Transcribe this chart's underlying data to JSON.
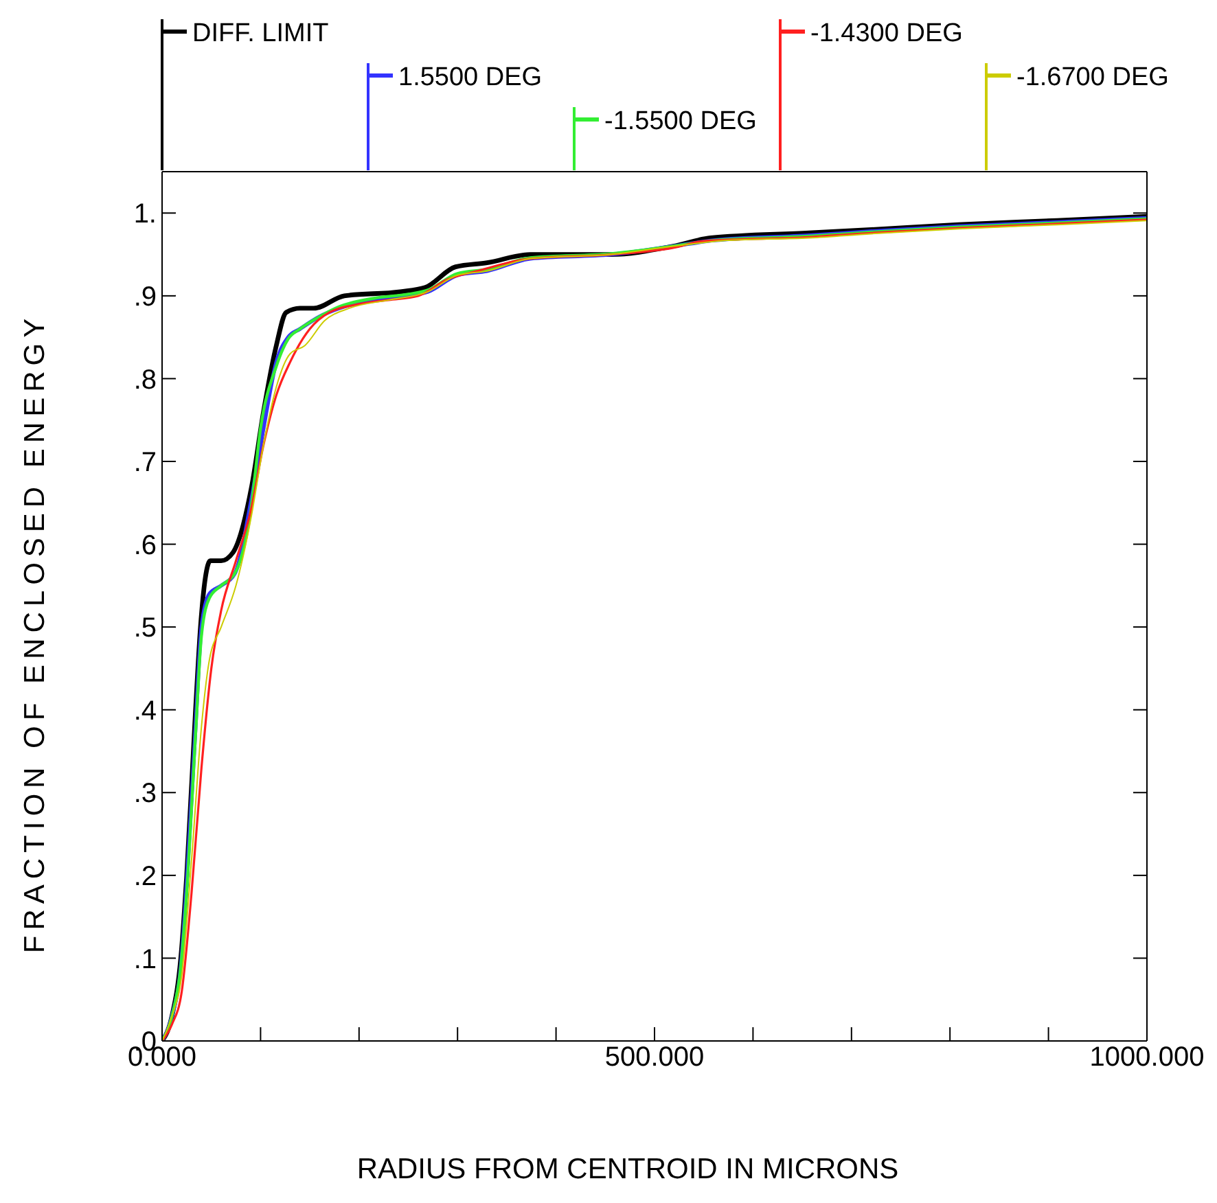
{
  "chart_data": {
    "type": "line",
    "xlabel": "RADIUS FROM CENTROID IN MICRONS",
    "ylabel": "FRACTION OF ENCLOSED ENERGY",
    "xlim": [
      0,
      1000
    ],
    "xticks": [
      {
        "value": 0,
        "label": "0.000"
      },
      {
        "value": 100,
        "label": null
      },
      {
        "value": 200,
        "label": null
      },
      {
        "value": 300,
        "label": null
      },
      {
        "value": 400,
        "label": null
      },
      {
        "value": 500,
        "label": "500.000"
      },
      {
        "value": 600,
        "label": null
      },
      {
        "value": 700,
        "label": null
      },
      {
        "value": 800,
        "label": null
      },
      {
        "value": 900,
        "label": null
      },
      {
        "value": 1000,
        "label": "1000.000"
      }
    ],
    "ylim": [
      0,
      1.05
    ],
    "yticks": [
      {
        "value": 0,
        "label": ".0"
      },
      {
        "value": 0.1,
        "label": ".1"
      },
      {
        "value": 0.2,
        "label": ".2"
      },
      {
        "value": 0.3,
        "label": ".3"
      },
      {
        "value": 0.4,
        "label": ".4"
      },
      {
        "value": 0.5,
        "label": ".5"
      },
      {
        "value": 0.6,
        "label": ".6"
      },
      {
        "value": 0.7,
        "label": ".7"
      },
      {
        "value": 0.8,
        "label": ".8"
      },
      {
        "value": 0.9,
        "label": ".9"
      },
      {
        "value": 1,
        "label": "1."
      }
    ],
    "grid": false,
    "marker": "none",
    "line_style": "solid",
    "legend": "top",
    "series": [
      {
        "name": "DIFF. LIMIT",
        "color": "#000000",
        "x": [
          0,
          10,
          19,
          25,
          34,
          39,
          44,
          49,
          60,
          72,
          91,
          103,
          116,
          126,
          140,
          154,
          185,
          242,
          267,
          298,
          330,
          374,
          456,
          519,
          557,
          657,
          720,
          809,
          909,
          1000
        ],
        "values": [
          0,
          0.03,
          0.1,
          0.2,
          0.4,
          0.5,
          0.56,
          0.58,
          0.58,
          0.59,
          0.67,
          0.76,
          0.84,
          0.88,
          0.885,
          0.885,
          0.9,
          0.905,
          0.91,
          0.935,
          0.94,
          0.95,
          0.95,
          0.96,
          0.97,
          0.976,
          0.98,
          0.986,
          0.991,
          0.996
        ]
      },
      {
        "name": "1.5500 DEG",
        "color": "#3333ff",
        "x": [
          0,
          10,
          19,
          25,
          34,
          40,
          48,
          60,
          74,
          90,
          103,
          116,
          128,
          140,
          160,
          180,
          215,
          250,
          270,
          300,
          330,
          374,
          456,
          519,
          560,
          657,
          720,
          809,
          909,
          1000
        ],
        "values": [
          0,
          0.03,
          0.09,
          0.19,
          0.38,
          0.5,
          0.54,
          0.55,
          0.565,
          0.65,
          0.74,
          0.82,
          0.85,
          0.86,
          0.875,
          0.885,
          0.895,
          0.9,
          0.905,
          0.925,
          0.93,
          0.945,
          0.95,
          0.96,
          0.967,
          0.973,
          0.978,
          0.984,
          0.989,
          0.994
        ]
      },
      {
        "name": "-1.5500 DEG",
        "color": "#33ee33",
        "x": [
          0,
          10,
          19,
          25,
          34,
          40,
          48,
          60,
          74,
          90,
          100,
          116,
          128,
          140,
          160,
          180,
          215,
          250,
          270,
          300,
          330,
          374,
          456,
          519,
          560,
          657,
          720,
          809,
          909,
          1000
        ],
        "values": [
          0,
          0.03,
          0.09,
          0.18,
          0.37,
          0.49,
          0.535,
          0.55,
          0.565,
          0.64,
          0.74,
          0.815,
          0.848,
          0.86,
          0.875,
          0.887,
          0.897,
          0.902,
          0.907,
          0.927,
          0.932,
          0.946,
          0.951,
          0.96,
          0.967,
          0.972,
          0.977,
          0.983,
          0.988,
          0.993
        ]
      },
      {
        "name": "-1.4300 DEG",
        "color": "#ff2020",
        "x": [
          0,
          10,
          20,
          30,
          40,
          50,
          60,
          75,
          90,
          103,
          116,
          130,
          150,
          170,
          200,
          230,
          260,
          290,
          320,
          374,
          456,
          519,
          549,
          657,
          720,
          809,
          909,
          1000
        ],
        "values": [
          0,
          0.02,
          0.06,
          0.18,
          0.33,
          0.45,
          0.52,
          0.58,
          0.64,
          0.72,
          0.78,
          0.82,
          0.86,
          0.88,
          0.89,
          0.895,
          0.9,
          0.92,
          0.93,
          0.945,
          0.95,
          0.958,
          0.966,
          0.971,
          0.976,
          0.982,
          0.987,
          0.992
        ]
      },
      {
        "name": "-1.6700 DEG",
        "color": "#cccc00",
        "x": [
          0,
          10,
          20,
          30,
          40,
          48,
          60,
          75,
          90,
          103,
          116,
          130,
          145,
          165,
          190,
          230,
          270,
          300,
          330,
          374,
          456,
          519,
          574,
          657,
          720,
          809,
          909,
          1000
        ],
        "values": [
          0,
          0.03,
          0.08,
          0.22,
          0.38,
          0.46,
          0.5,
          0.55,
          0.63,
          0.72,
          0.79,
          0.83,
          0.84,
          0.87,
          0.885,
          0.895,
          0.905,
          0.925,
          0.93,
          0.945,
          0.95,
          0.96,
          0.967,
          0.97,
          0.975,
          0.981,
          0.986,
          0.991
        ]
      }
    ]
  }
}
